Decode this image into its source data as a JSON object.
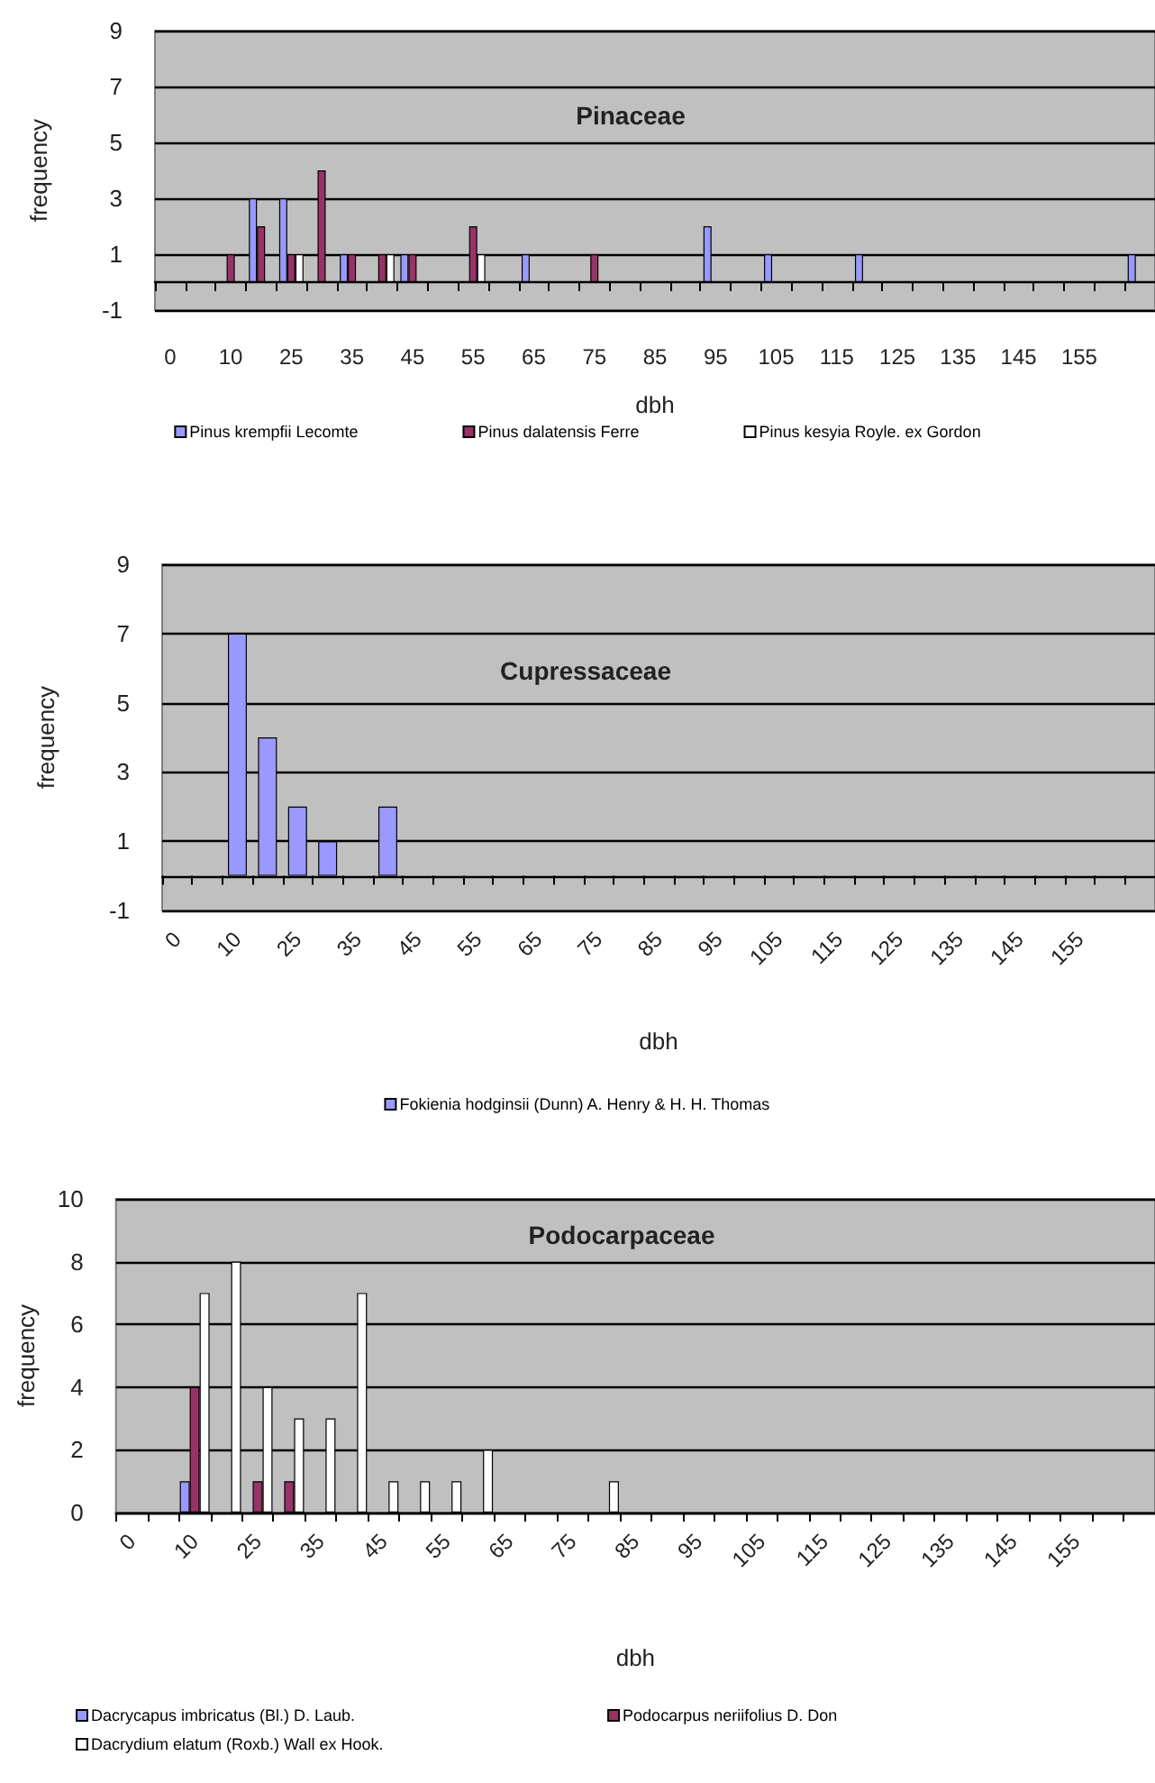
{
  "chart_data": [
    {
      "type": "bar",
      "title": "Pinaceae",
      "xlabel": "dbh",
      "ylabel": "frequency",
      "categories": [
        "0",
        null,
        "10",
        null,
        "25",
        null,
        "35",
        null,
        "45",
        null,
        "55",
        null,
        "65",
        null,
        "75",
        null,
        "85",
        null,
        "95",
        null,
        "105",
        null,
        "115",
        null,
        "125",
        null,
        "135",
        null,
        "145",
        null,
        "155",
        null,
        null
      ],
      "series": [
        {
          "name": "Pinus krempfii Lecomte",
          "color": "#9999ff",
          "values": [
            null,
            null,
            null,
            3,
            3,
            null,
            1,
            null,
            1,
            null,
            null,
            null,
            1,
            null,
            null,
            null,
            null,
            null,
            2,
            null,
            1,
            null,
            null,
            1,
            null,
            null,
            null,
            null,
            null,
            null,
            null,
            null,
            1
          ]
        },
        {
          "name": "Pinus dalatensis Ferre",
          "color": "#993366",
          "values": [
            null,
            null,
            1,
            2,
            1,
            4,
            1,
            1,
            1,
            null,
            2,
            null,
            null,
            null,
            1,
            null,
            null,
            null,
            null,
            null,
            null,
            null,
            null,
            null,
            null,
            null,
            null,
            null,
            null,
            null,
            null,
            null,
            null
          ]
        },
        {
          "name": "Pinus kesyia Royle. ex Gordon",
          "color": "#ffffff",
          "values": [
            null,
            null,
            null,
            null,
            1,
            null,
            null,
            1,
            null,
            null,
            1,
            null,
            null,
            null,
            null,
            null,
            null,
            null,
            null,
            null,
            null,
            null,
            null,
            null,
            null,
            null,
            null,
            null,
            null,
            null,
            null,
            null,
            null
          ]
        }
      ],
      "ylim": [
        -1,
        9
      ],
      "yticks": [
        -1,
        1,
        3,
        5,
        7,
        9
      ],
      "grid": "y",
      "legend": "bottom"
    },
    {
      "type": "bar",
      "title": "Cupressaceae",
      "xlabel": "dbh",
      "ylabel": "frequency",
      "categories": [
        "0",
        null,
        "10",
        null,
        "25",
        null,
        "35",
        null,
        "45",
        null,
        "55",
        null,
        "65",
        null,
        "75",
        null,
        "85",
        null,
        "95",
        null,
        "105",
        null,
        "115",
        null,
        "125",
        null,
        "135",
        null,
        "145",
        null,
        "155",
        null,
        null
      ],
      "series": [
        {
          "name": "Fokienia hodginsii (Dunn) A. Henry & H. H. Thomas",
          "color": "#9999ff",
          "values": [
            null,
            null,
            7,
            4,
            2,
            1,
            null,
            2,
            null,
            null,
            null,
            null,
            null,
            null,
            null,
            null,
            null,
            null,
            null,
            null,
            null,
            null,
            null,
            null,
            null,
            null,
            null,
            null,
            null,
            null,
            null,
            null,
            null
          ]
        }
      ],
      "ylim": [
        -1,
        9
      ],
      "yticks": [
        -1,
        1,
        3,
        5,
        7,
        9
      ],
      "grid": "y",
      "legend": "bottom"
    },
    {
      "type": "bar",
      "title": "Podocarpaceae",
      "xlabel": "dbh",
      "ylabel": "frequency",
      "categories": [
        "0",
        null,
        "10",
        null,
        "25",
        null,
        "35",
        null,
        "45",
        null,
        "55",
        null,
        "65",
        null,
        "75",
        null,
        "85",
        null,
        "95",
        null,
        "105",
        null,
        "115",
        null,
        "125",
        null,
        "135",
        null,
        "145",
        null,
        "155",
        null,
        null
      ],
      "series": [
        {
          "name": "Dacrycapus imbricatus (Bl.) D. Laub.",
          "color": "#9999ff",
          "values": [
            null,
            null,
            1,
            null,
            null,
            null,
            null,
            null,
            null,
            null,
            null,
            null,
            null,
            null,
            null,
            null,
            null,
            null,
            null,
            null,
            null,
            null,
            null,
            null,
            null,
            null,
            null,
            null,
            null,
            null,
            null,
            null,
            null
          ]
        },
        {
          "name": "Podocarpus neriifolius D. Don",
          "color": "#993366",
          "values": [
            null,
            null,
            4,
            null,
            1,
            1,
            null,
            null,
            null,
            null,
            null,
            null,
            null,
            null,
            null,
            null,
            null,
            null,
            null,
            null,
            null,
            null,
            null,
            null,
            null,
            null,
            null,
            null,
            null,
            null,
            null,
            null,
            null
          ]
        },
        {
          "name": "Dacrydium elatum (Roxb.) Wall ex Hook.",
          "color": "#ffffff",
          "values": [
            null,
            null,
            7,
            8,
            4,
            3,
            3,
            7,
            1,
            1,
            1,
            2,
            null,
            null,
            null,
            1,
            null,
            null,
            null,
            null,
            null,
            null,
            null,
            null,
            null,
            null,
            null,
            null,
            null,
            null,
            null,
            null,
            null
          ]
        }
      ],
      "ylim": [
        0,
        10
      ],
      "yticks": [
        0,
        2,
        4,
        6,
        8,
        10
      ],
      "grid": "y",
      "legend": "bottom"
    }
  ]
}
